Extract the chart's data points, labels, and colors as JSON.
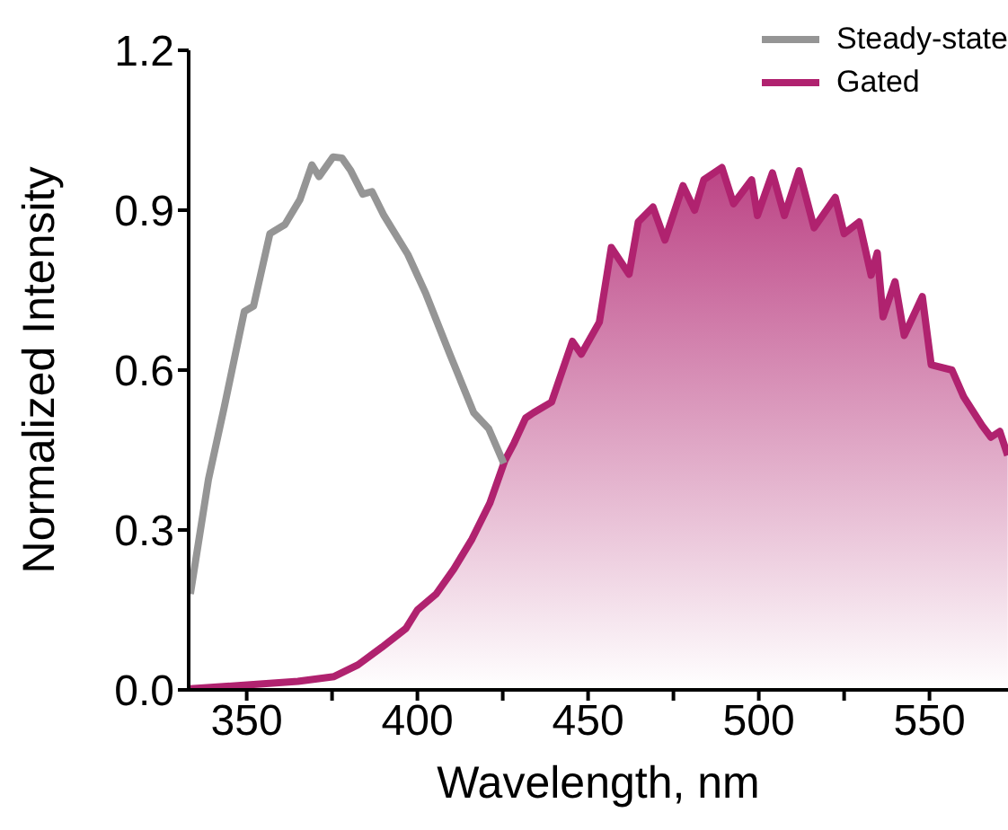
{
  "chart_data": {
    "type": "line",
    "xlabel": "Wavelength, nm",
    "ylabel": "Normalized Intensity",
    "xlim": [
      333,
      573
    ],
    "xticks": [
      350,
      {
        "value": 375,
        "label": null
      },
      400,
      {
        "value": 425,
        "label": null
      },
      450,
      {
        "value": 475,
        "label": null
      },
      500,
      {
        "value": 525,
        "label": null
      },
      550
    ],
    "ylim": [
      0,
      1.2
    ],
    "yticks": [
      {
        "value": 0,
        "label": "0.0"
      },
      {
        "value": 0.3,
        "label": "0.3"
      },
      {
        "value": 0.6,
        "label": "0.6"
      },
      {
        "value": 0.9,
        "label": "0.9"
      },
      {
        "value": 1.2,
        "label": "1.2"
      }
    ],
    "legend": "top right",
    "series": [
      {
        "name": "Steady-state",
        "color": "#959595",
        "x": [
          333.5,
          338.8,
          343.4,
          349.3,
          352,
          356.8,
          361.2,
          365.6,
          369.1,
          371.2,
          375.3,
          377.9,
          380.5,
          384,
          386.7,
          390.2,
          397.2,
          402.5,
          409.5,
          416.5,
          420.9,
          425.3
        ],
        "values": [
          0.18,
          0.395,
          0.53,
          0.71,
          0.72,
          0.856,
          0.873,
          0.92,
          0.985,
          0.963,
          1.0,
          0.998,
          0.974,
          0.93,
          0.935,
          0.89,
          0.817,
          0.743,
          0.63,
          0.52,
          0.49,
          0.425
        ]
      },
      {
        "name": "Gated",
        "color": "#b0226f",
        "type": "area",
        "x": [
          333.5,
          347.4,
          365,
          375.6,
          382.6,
          389.6,
          396.6,
          400,
          405.5,
          410.7,
          416,
          421.2,
          425.6,
          428.3,
          431.7,
          434,
          439.3,
          445.4,
          448,
          453.3,
          456.8,
          462,
          464.7,
          469,
          472.5,
          477.8,
          481.2,
          483.9,
          489.2,
          492.6,
          497.9,
          499.6,
          504,
          507.5,
          511.8,
          516.2,
          522.4,
          525,
          529.4,
          532.9,
          534.7,
          536.4,
          539.9,
          542.6,
          547.9,
          550.5,
          556.6,
          560,
          565.4,
          568,
          570.6,
          572.9
        ],
        "values": [
          0.002,
          0.008,
          0.016,
          0.025,
          0.047,
          0.08,
          0.115,
          0.15,
          0.18,
          0.227,
          0.283,
          0.35,
          0.43,
          0.463,
          0.51,
          0.52,
          0.54,
          0.654,
          0.63,
          0.69,
          0.83,
          0.78,
          0.878,
          0.906,
          0.844,
          0.946,
          0.9,
          0.957,
          0.98,
          0.912,
          0.957,
          0.89,
          0.97,
          0.89,
          0.974,
          0.867,
          0.924,
          0.856,
          0.878,
          0.778,
          0.82,
          0.7,
          0.766,
          0.665,
          0.738,
          0.61,
          0.6,
          0.55,
          0.496,
          0.474,
          0.485,
          0.44
        ]
      }
    ]
  }
}
